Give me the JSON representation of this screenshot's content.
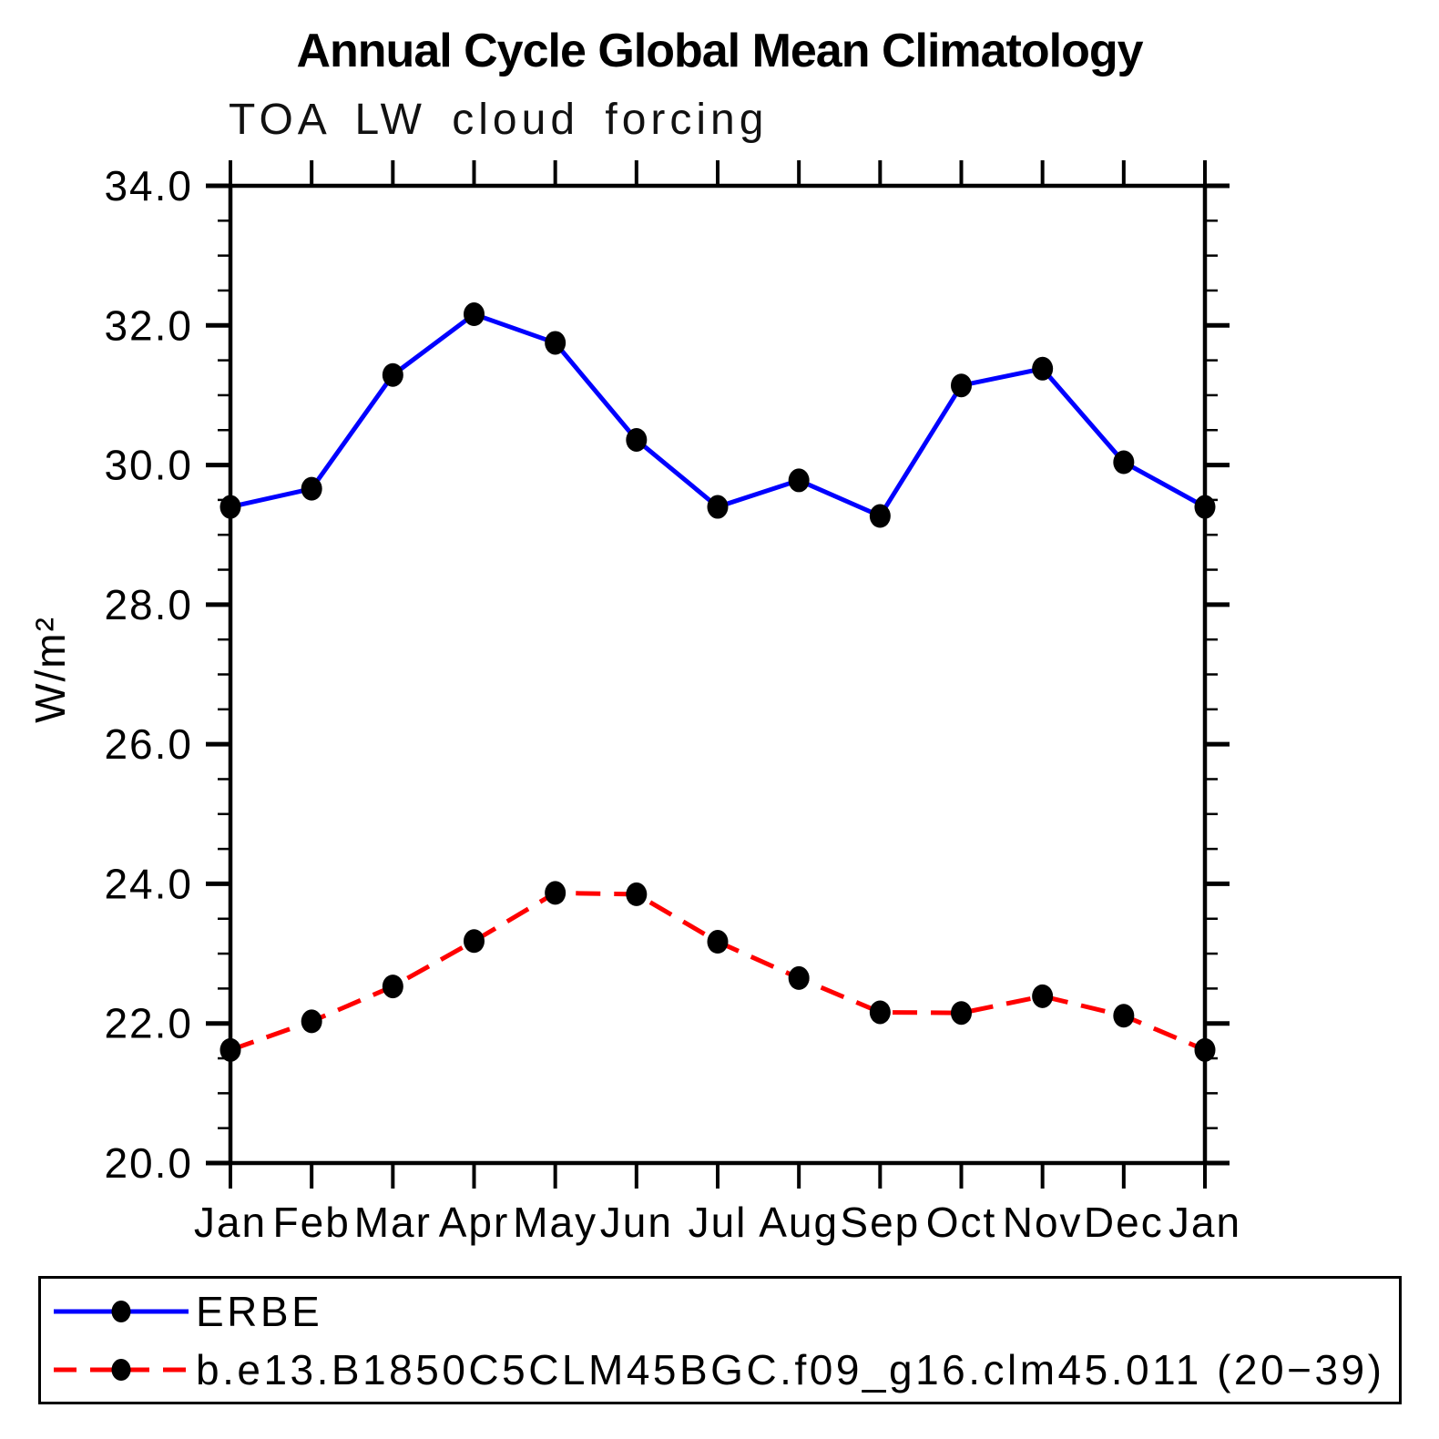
{
  "chart_data": {
    "type": "line",
    "title": "Annual Cycle Global Mean Climatology",
    "subtitle": "TOA LW cloud forcing",
    "xlabel": "",
    "ylabel": "W/m²",
    "categories": [
      "Jan",
      "Feb",
      "Mar",
      "Apr",
      "May",
      "Jun",
      "Jul",
      "Aug",
      "Sep",
      "Oct",
      "Nov",
      "Dec",
      "Jan"
    ],
    "ylim": [
      20.0,
      34.0
    ],
    "ytick_major": [
      20.0,
      22.0,
      24.0,
      26.0,
      28.0,
      30.0,
      32.0,
      34.0
    ],
    "ytick_labels": [
      "20.0",
      "22.0",
      "24.0",
      "26.0",
      "28.0",
      "30.0",
      "32.0",
      "34.0"
    ],
    "ytick_minor_step": 0.5,
    "grid": false,
    "legend_position": "bottom-outside",
    "marker_color": "#000000",
    "series": [
      {
        "name": "ERBE",
        "color": "#0000ff",
        "line_style": "solid",
        "values": [
          29.4,
          29.66,
          31.29,
          32.16,
          31.75,
          30.36,
          29.4,
          29.78,
          29.27,
          31.14,
          31.38,
          30.04,
          29.4
        ]
      },
      {
        "name": "b.e13.B1850C5CLM45BGC.f09_g16.clm45.011 (20−39)",
        "color": "#ff0000",
        "line_style": "dashed",
        "values": [
          21.62,
          22.03,
          22.53,
          23.18,
          23.87,
          23.85,
          23.17,
          22.65,
          22.16,
          22.15,
          22.39,
          22.11,
          21.62
        ]
      }
    ]
  }
}
